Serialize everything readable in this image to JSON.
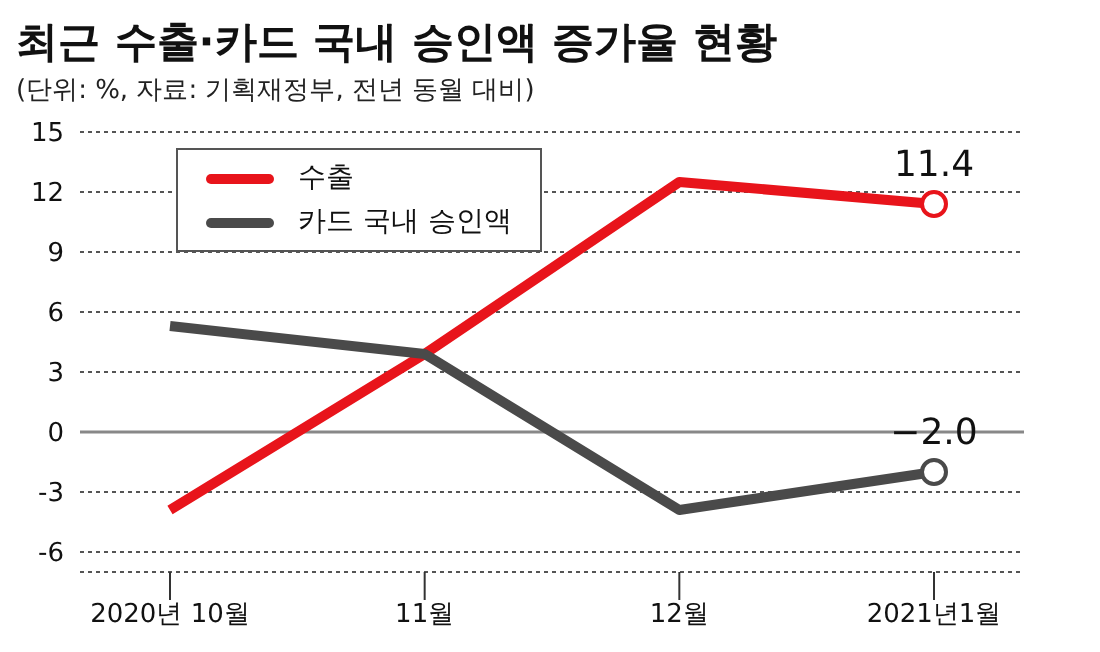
{
  "chart_data": {
    "type": "line",
    "title": "최근 수출·카드 국내 승인액 증가율 현황",
    "subtitle": "(단위: %, 자료: 기획재정부, 전년 동월 대비)",
    "categories": [
      "2020년 10월",
      "11월",
      "12월",
      "2021년1월"
    ],
    "series": [
      {
        "name": "수출",
        "color": "#e8141b",
        "values": [
          -3.9,
          3.9,
          12.5,
          11.4
        ],
        "value_labels": [
          null,
          null,
          null,
          "11.4"
        ]
      },
      {
        "name": "카드 국내 승인액",
        "color": "#4a4a4a",
        "values": [
          5.3,
          3.9,
          -3.9,
          -2.0
        ],
        "value_labels": [
          null,
          null,
          null,
          "−2.0"
        ]
      }
    ],
    "ylim": [
      -7,
      15
    ],
    "yticks": [
      -6,
      -3,
      0,
      3,
      6,
      9,
      12,
      15
    ],
    "grid": "y",
    "legend": "top left",
    "ref_lines": [
      {
        "axis": "y",
        "value": 0,
        "color": "#888888"
      }
    ]
  }
}
